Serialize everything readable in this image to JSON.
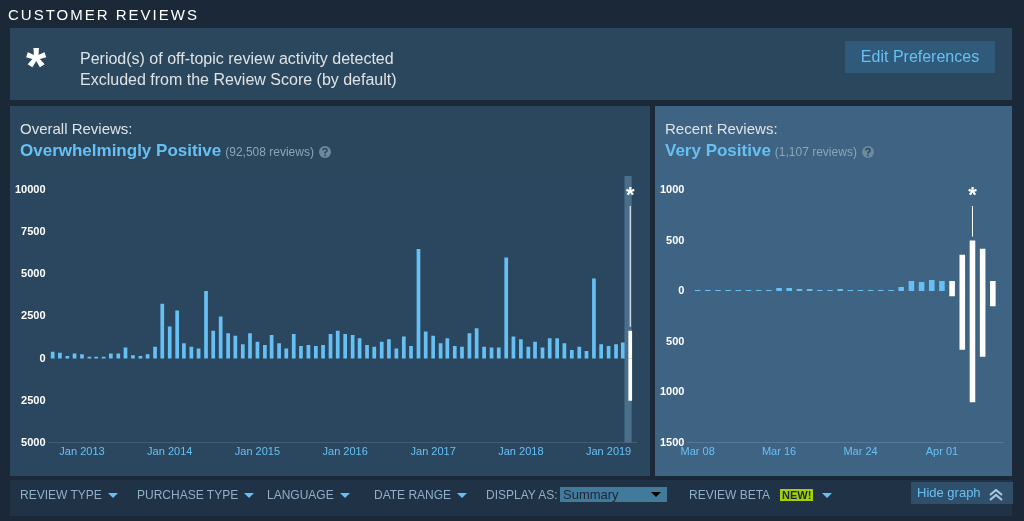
{
  "chart_data": [
    {
      "type": "other",
      "title": "CUSTOMER REVIEWS",
      "annotations": [
        "*",
        "Period(s) of off-topic review activity detected",
        "Excluded from the Review Score (by default)",
        "Edit Preferences"
      ]
    },
    {
      "type": "bar",
      "title": "Overall Reviews:",
      "subtitle": "Overwhelmingly Positive",
      "annotations": [
        "(92,508 reviews)",
        {
          "text": "*",
          "x": "2019-04",
          "y": 1650
        }
      ],
      "stacked": true,
      "x": [
        "2012-09",
        "2012-10",
        "2012-11",
        "2012-12",
        "2013-01",
        "2013-02",
        "2013-03",
        "2013-04",
        "2013-05",
        "2013-06",
        "2013-07",
        "2013-08",
        "2013-09",
        "2013-10",
        "2013-11",
        "2013-12",
        "2014-01",
        "2014-02",
        "2014-03",
        "2014-04",
        "2014-05",
        "2014-06",
        "2014-07",
        "2014-08",
        "2014-09",
        "2014-10",
        "2014-11",
        "2014-12",
        "2015-01",
        "2015-02",
        "2015-03",
        "2015-04",
        "2015-05",
        "2015-06",
        "2015-07",
        "2015-08",
        "2015-09",
        "2015-10",
        "2015-11",
        "2015-12",
        "2016-01",
        "2016-02",
        "2016-03",
        "2016-04",
        "2016-05",
        "2016-06",
        "2016-07",
        "2016-08",
        "2016-09",
        "2016-10",
        "2016-11",
        "2016-12",
        "2017-01",
        "2017-02",
        "2017-03",
        "2017-04",
        "2017-05",
        "2017-06",
        "2017-07",
        "2017-08",
        "2017-09",
        "2017-10",
        "2017-11",
        "2017-12",
        "2018-01",
        "2018-02",
        "2018-03",
        "2018-04",
        "2018-05",
        "2018-06",
        "2018-07",
        "2018-08",
        "2018-09",
        "2018-10",
        "2018-11",
        "2018-12",
        "2019-01",
        "2019-02",
        "2019-03",
        "2019-04"
      ],
      "series": [
        {
          "colors": [
            "#66c0f4",
            "#66c0f4",
            "#66c0f4",
            "#66c0f4",
            "#66c0f4",
            "#66c0f4",
            "#66c0f4",
            "#66c0f4",
            "#66c0f4",
            "#66c0f4",
            "#66c0f4",
            "#66c0f4",
            "#66c0f4",
            "#66c0f4",
            "#66c0f4",
            "#66c0f4",
            "#66c0f4",
            "#66c0f4",
            "#66c0f4",
            "#66c0f4",
            "#66c0f4",
            "#66c0f4",
            "#66c0f4",
            "#66c0f4",
            "#66c0f4",
            "#66c0f4",
            "#66c0f4",
            "#66c0f4",
            "#66c0f4",
            "#66c0f4",
            "#66c0f4",
            "#66c0f4",
            "#66c0f4",
            "#66c0f4",
            "#66c0f4",
            "#66c0f4",
            "#66c0f4",
            "#66c0f4",
            "#66c0f4",
            "#66c0f4",
            "#66c0f4",
            "#66c0f4",
            "#66c0f4",
            "#66c0f4",
            "#66c0f4",
            "#66c0f4",
            "#66c0f4",
            "#66c0f4",
            "#66c0f4",
            "#66c0f4",
            "#66c0f4",
            "#66c0f4",
            "#66c0f4",
            "#66c0f4",
            "#66c0f4",
            "#66c0f4",
            "#66c0f4",
            "#66c0f4",
            "#66c0f4",
            "#66c0f4",
            "#66c0f4",
            "#66c0f4",
            "#66c0f4",
            "#66c0f4",
            "#66c0f4",
            "#66c0f4",
            "#66c0f4",
            "#66c0f4",
            "#66c0f4",
            "#66c0f4",
            "#66c0f4",
            "#66c0f4",
            "#66c0f4",
            "#66c0f4",
            "#66c0f4",
            "#66c0f4",
            "#66c0f4",
            "#66c0f4",
            "#66c0f4",
            "#ffffff"
          ],
          "values": [
            400,
            350,
            150,
            300,
            250,
            100,
            100,
            100,
            300,
            300,
            650,
            200,
            150,
            250,
            700,
            3250,
            1900,
            2850,
            900,
            700,
            600,
            4000,
            1650,
            2500,
            1500,
            1350,
            850,
            1500,
            1000,
            800,
            1400,
            900,
            600,
            1450,
            750,
            800,
            750,
            800,
            1450,
            1650,
            1450,
            1400,
            1200,
            800,
            700,
            1000,
            1150,
            600,
            1300,
            750,
            6500,
            1600,
            1350,
            900,
            1200,
            750,
            700,
            1500,
            1800,
            700,
            650,
            650,
            6000,
            1300,
            1150,
            700,
            1000,
            650,
            1200,
            1200,
            900,
            500,
            700,
            450,
            4750,
            850,
            750,
            850,
            950,
            1650
          ]
        },
        {
          "color": "#ffffff",
          "values": [
            null,
            null,
            null,
            null,
            null,
            null,
            null,
            null,
            null,
            null,
            null,
            null,
            null,
            null,
            null,
            null,
            null,
            null,
            null,
            null,
            null,
            null,
            null,
            null,
            null,
            null,
            null,
            null,
            null,
            null,
            null,
            null,
            null,
            null,
            null,
            null,
            null,
            null,
            null,
            null,
            null,
            null,
            null,
            null,
            null,
            null,
            null,
            null,
            null,
            null,
            null,
            null,
            null,
            null,
            null,
            null,
            null,
            null,
            null,
            null,
            null,
            null,
            null,
            null,
            null,
            null,
            null,
            null,
            null,
            null,
            null,
            null,
            null,
            null,
            null,
            null,
            null,
            null,
            null,
            -2500
          ]
        }
      ],
      "xlim": [
        "2012-08-15",
        "2019-04-25"
      ],
      "xticks": [
        {
          "value": "2013-01",
          "label": "Jan 2013"
        },
        {
          "value": "2014-01",
          "label": "Jan 2014"
        },
        {
          "value": "2015-01",
          "label": "Jan 2015"
        },
        {
          "value": "2016-01",
          "label": "Jan 2016"
        },
        {
          "value": "2017-01",
          "label": "Jan 2017"
        },
        {
          "value": "2018-01",
          "label": "Jan 2018"
        },
        {
          "value": "2019-01",
          "label": "Jan 2019"
        }
      ],
      "ylim": [
        -5000,
        10000
      ],
      "yticks": [
        {
          "value": -5000,
          "label": "5000"
        },
        {
          "value": -2500,
          "label": "2500"
        },
        0,
        2500,
        5000,
        7500,
        10000
      ],
      "bands": [
        {
          "axis": "x",
          "from": "2019-03-08",
          "to": "2019-04-07",
          "color": "#4a6f8c"
        }
      ]
    },
    {
      "type": "bar",
      "title": "Recent Reviews:",
      "subtitle": "Very Positive",
      "annotations": [
        "(1,107 reviews)",
        {
          "text": "*",
          "x": "2019-04-04",
          "y": 500
        }
      ],
      "stacked": true,
      "x": [
        "2019-03-08",
        "2019-03-09",
        "2019-03-10",
        "2019-03-11",
        "2019-03-12",
        "2019-03-13",
        "2019-03-14",
        "2019-03-15",
        "2019-03-16",
        "2019-03-17",
        "2019-03-18",
        "2019-03-19",
        "2019-03-20",
        "2019-03-21",
        "2019-03-22",
        "2019-03-23",
        "2019-03-24",
        "2019-03-25",
        "2019-03-26",
        "2019-03-27",
        "2019-03-28",
        "2019-03-29",
        "2019-03-30",
        "2019-03-31",
        "2019-04-01",
        "2019-04-02",
        "2019-04-03",
        "2019-04-04",
        "2019-04-05",
        "2019-04-06"
      ],
      "series": [
        {
          "colors": [
            "#66c0f4",
            "#66c0f4",
            "#66c0f4",
            "#66c0f4",
            "#66c0f4",
            "#66c0f4",
            "#66c0f4",
            "#66c0f4",
            "#66c0f4",
            "#66c0f4",
            "#66c0f4",
            "#66c0f4",
            "#66c0f4",
            "#66c0f4",
            "#66c0f4",
            "#66c0f4",
            "#66c0f4",
            "#66c0f4",
            "#66c0f4",
            "#66c0f4",
            "#66c0f4",
            "#66c0f4",
            "#66c0f4",
            "#66c0f4",
            "#66c0f4",
            "#ffffff",
            "#ffffff",
            "#ffffff",
            "#ffffff",
            "#ffffff"
          ],
          "values": [
            10,
            10,
            10,
            10,
            10,
            10,
            10,
            10,
            30,
            30,
            20,
            20,
            10,
            10,
            20,
            10,
            10,
            10,
            10,
            10,
            40,
            100,
            90,
            110,
            100,
            100,
            360,
            500,
            420,
            100
          ]
        },
        {
          "color": "#ffffff",
          "values": [
            null,
            null,
            null,
            null,
            null,
            null,
            null,
            null,
            null,
            null,
            null,
            null,
            null,
            null,
            null,
            null,
            null,
            null,
            null,
            null,
            null,
            null,
            null,
            null,
            null,
            -50,
            -580,
            -1100,
            -650,
            -150
          ]
        }
      ],
      "xlim": [
        "2019-03-07",
        "2019-04-07"
      ],
      "xticks": [
        {
          "value": "2019-03-08",
          "label": "Mar 08"
        },
        {
          "value": "2019-03-16",
          "label": "Mar 16"
        },
        {
          "value": "2019-03-24",
          "label": "Mar 24"
        },
        {
          "value": "2019-04-01",
          "label": "Apr 01"
        }
      ],
      "ylim": [
        -1500,
        1000
      ],
      "yticks": [
        {
          "value": -1500,
          "label": "1500"
        },
        {
          "value": -1000,
          "label": "1000"
        },
        {
          "value": -500,
          "label": "500"
        },
        0,
        500,
        1000
      ]
    },
    {
      "type": "other",
      "annotations": [
        "REVIEW TYPE",
        "PURCHASE TYPE",
        "LANGUAGE",
        "DATE RANGE",
        "DISPLAY AS:",
        "Summary",
        "REVIEW BETA",
        "NEW!",
        "Hide graph"
      ]
    }
  ]
}
